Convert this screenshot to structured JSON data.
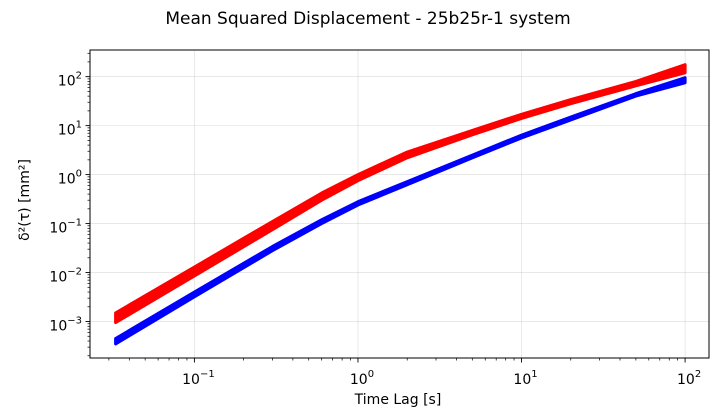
{
  "chart_data": {
    "type": "line",
    "title": "Mean Squared Displacement - 25b25r-1 system",
    "xlabel": "Time Lag [s]",
    "ylabel": "δ²(τ) [mm²]",
    "xscale": "log",
    "yscale": "log",
    "xlim": [
      0.023,
      140
    ],
    "ylim": [
      0.00018,
      350
    ],
    "grid": true,
    "x_ticks": [
      {
        "value": 0.1,
        "base": "10",
        "exp": "−1"
      },
      {
        "value": 1,
        "base": "10",
        "exp": "0"
      },
      {
        "value": 10,
        "base": "10",
        "exp": "1"
      },
      {
        "value": 100,
        "base": "10",
        "exp": "2"
      }
    ],
    "y_ticks": [
      {
        "value": 0.001,
        "base": "10",
        "exp": "−3"
      },
      {
        "value": 0.01,
        "base": "10",
        "exp": "−2"
      },
      {
        "value": 0.1,
        "base": "10",
        "exp": "−1"
      },
      {
        "value": 1,
        "base": "10",
        "exp": "0"
      },
      {
        "value": 10,
        "base": "10",
        "exp": "1"
      },
      {
        "value": 100,
        "base": "10",
        "exp": "2"
      }
    ],
    "series": [
      {
        "color": "#ff0000",
        "band": true,
        "x": [
          0.033,
          0.1,
          0.3,
          0.6,
          1.0,
          2.0,
          5.0,
          10,
          20,
          50,
          100
        ],
        "y_low": [
          0.00095,
          0.0085,
          0.075,
          0.3,
          0.75,
          2.2,
          6.5,
          14,
          28,
          65,
          120
        ],
        "y_high": [
          0.0015,
          0.013,
          0.11,
          0.42,
          1.0,
          2.9,
          8.0,
          17,
          34,
          80,
          175
        ]
      },
      {
        "color": "#0000ff",
        "band": true,
        "x": [
          0.033,
          0.1,
          0.3,
          0.6,
          1.0,
          2.0,
          5.0,
          10,
          20,
          50,
          100
        ],
        "y_low": [
          0.00035,
          0.0032,
          0.028,
          0.1,
          0.24,
          0.62,
          2.2,
          5.6,
          13,
          40,
          75
        ],
        "y_high": [
          0.00045,
          0.004,
          0.034,
          0.12,
          0.28,
          0.72,
          2.5,
          6.4,
          15,
          45,
          95
        ]
      }
    ]
  }
}
